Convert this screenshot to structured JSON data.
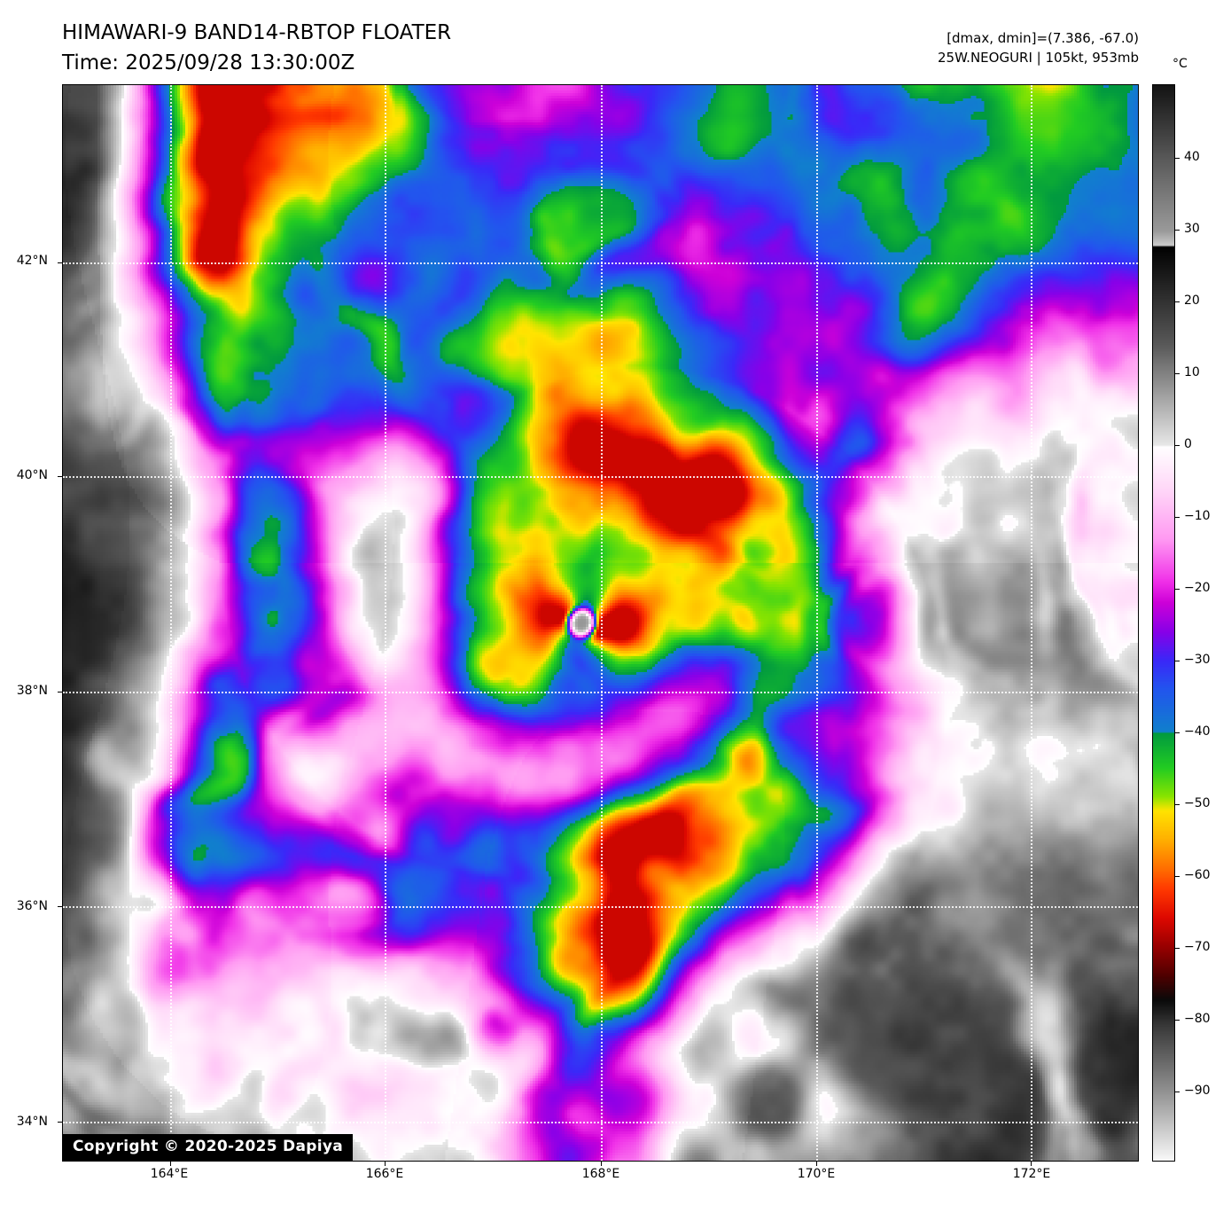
{
  "header": {
    "title": "HIMAWARI-9 BAND14-RBTOP FLOATER",
    "time_line": "Time: 2025/09/28 13:30:00Z"
  },
  "info": {
    "range_line": "[dmax, dmin]=(7.386, -67.0)",
    "storm_line": "25W.NEOGURI | 105kt, 953mb"
  },
  "copyright": "Copyright © 2020-2025 Dapiya",
  "colorbar": {
    "unit": "°C",
    "ticks": [
      "40",
      "30",
      "20",
      "10",
      "0",
      "−10",
      "−20",
      "−30",
      "−40",
      "−50",
      "−60",
      "−70",
      "−80",
      "−90"
    ],
    "tick_values": [
      40,
      30,
      20,
      10,
      0,
      -10,
      -20,
      -30,
      -40,
      -50,
      -60,
      -70,
      -80,
      -90
    ]
  },
  "axes": {
    "lat_ticks": [
      {
        "label": "42°N",
        "pos": 0.1646
      },
      {
        "label": "40°N",
        "pos": 0.3638
      },
      {
        "label": "38°N",
        "pos": 0.5638
      },
      {
        "label": "36°N",
        "pos": 0.7638
      },
      {
        "label": "34°N",
        "pos": 0.9638
      }
    ],
    "lon_ticks": [
      {
        "label": "164°E",
        "pos": 0.0996
      },
      {
        "label": "166°E",
        "pos": 0.2996
      },
      {
        "label": "168°E",
        "pos": 0.5004
      },
      {
        "label": "170°E",
        "pos": 0.7004
      },
      {
        "label": "172°E",
        "pos": 0.9004
      }
    ]
  },
  "chart_data": {
    "type": "heatmap",
    "title": "HIMAWARI-9 BAND14-RBTOP FLOATER",
    "time_utc": "2025/09/28 13:30:00Z",
    "satellite": "HIMAWARI-9",
    "band": "BAND14",
    "product": "RBTOP FLOATER",
    "dmax_c": 7.386,
    "dmin_c": -67.0,
    "storm": {
      "id": "25W",
      "name": "NEOGURI",
      "intensity_kt": 105,
      "pressure_mb": 953
    },
    "storm_center": {
      "lon_e": 167.9,
      "lat_n": 38.63
    },
    "lon_range_e": [
      163.0,
      173.15
    ],
    "lat_range_n": [
      33.61,
      43.65
    ],
    "xlabel_ticks": [
      "164°E",
      "166°E",
      "168°E",
      "170°E",
      "172°E"
    ],
    "ylabel_ticks": [
      "42°N",
      "40°N",
      "38°N",
      "36°N",
      "34°N"
    ],
    "grid": true,
    "legend_position": "right-colorbar",
    "colorbar_unit": "°C",
    "colorbar_range_c": [
      50.3,
      -99.8
    ],
    "colormap_stops": [
      [
        50.3,
        "#141414"
      ],
      [
        40,
        "#5a5a5a"
      ],
      [
        30,
        "#9a9a9a"
      ],
      [
        28,
        "#cccccc"
      ],
      [
        27.99,
        "#000000"
      ],
      [
        14,
        "#5a5a5a"
      ],
      [
        0.05,
        "#e8e8e8"
      ],
      [
        0,
        "#ffffff"
      ],
      [
        -6,
        "#ffd8f8"
      ],
      [
        -13,
        "#ff9af2"
      ],
      [
        -19,
        "#f030e8"
      ],
      [
        -22,
        "#cc00d8"
      ],
      [
        -26,
        "#8800e8"
      ],
      [
        -30,
        "#3a28f8"
      ],
      [
        -34,
        "#2255ee"
      ],
      [
        -40,
        "#1080cc"
      ],
      [
        -40.01,
        "#009840"
      ],
      [
        -45,
        "#22cc22"
      ],
      [
        -49,
        "#88e400"
      ],
      [
        -51,
        "#ffe400"
      ],
      [
        -55,
        "#ffb000"
      ],
      [
        -59,
        "#ff7000"
      ],
      [
        -62,
        "#ff3800"
      ],
      [
        -66,
        "#dd0800"
      ],
      [
        -70,
        "#990000"
      ],
      [
        -74,
        "#500000"
      ],
      [
        -77.5,
        "#0a0a0a"
      ],
      [
        -81,
        "#383838"
      ],
      [
        -90,
        "#8f8f8f"
      ],
      [
        -99.8,
        "#f8f8f8"
      ]
    ]
  }
}
